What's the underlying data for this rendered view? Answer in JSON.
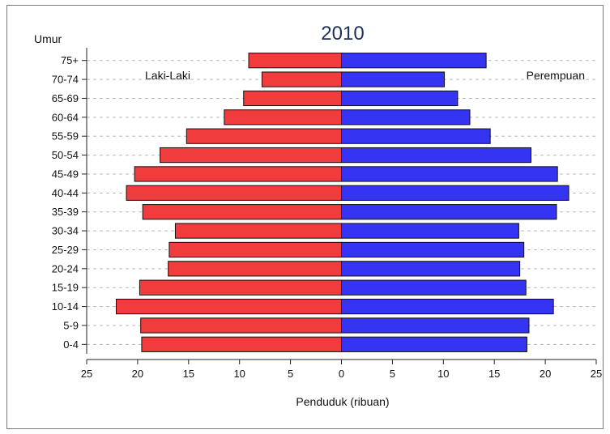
{
  "chart_data": {
    "type": "bar",
    "orientation": "horizontal",
    "subtype": "population-pyramid",
    "title": "2010",
    "ylabel": "Umur",
    "xlabel": "Penduduk (ribuan)",
    "categories": [
      "0-4",
      "5-9",
      "10-14",
      "15-19",
      "20-24",
      "25-29",
      "30-34",
      "35-39",
      "40-44",
      "45-49",
      "50-54",
      "55-59",
      "60-64",
      "65-69",
      "70-74",
      "75+"
    ],
    "series": [
      {
        "name": "Laki-Laki",
        "side": "left",
        "color": "#f03c3c",
        "values": [
          19.6,
          19.7,
          22.1,
          19.8,
          17.0,
          16.9,
          16.3,
          19.5,
          21.1,
          20.3,
          17.8,
          15.2,
          11.5,
          9.6,
          7.8,
          9.1
        ]
      },
      {
        "name": "Perempuan",
        "side": "right",
        "color": "#3434f2",
        "values": [
          18.2,
          18.4,
          20.8,
          18.1,
          17.5,
          17.9,
          17.4,
          21.1,
          22.3,
          21.2,
          18.6,
          14.6,
          12.6,
          11.4,
          10.1,
          14.2
        ]
      }
    ],
    "xlim": [
      -25,
      25
    ],
    "xticks": [
      -25,
      -20,
      -15,
      -10,
      -5,
      0,
      5,
      10,
      15,
      20,
      25
    ],
    "xtick_labels": [
      "25",
      "20",
      "15",
      "10",
      "5",
      "0",
      "5",
      "10",
      "15",
      "20",
      "25"
    ],
    "grid": "horizontal-dashed",
    "legend": "in-plot labels, top-left and top-right"
  }
}
